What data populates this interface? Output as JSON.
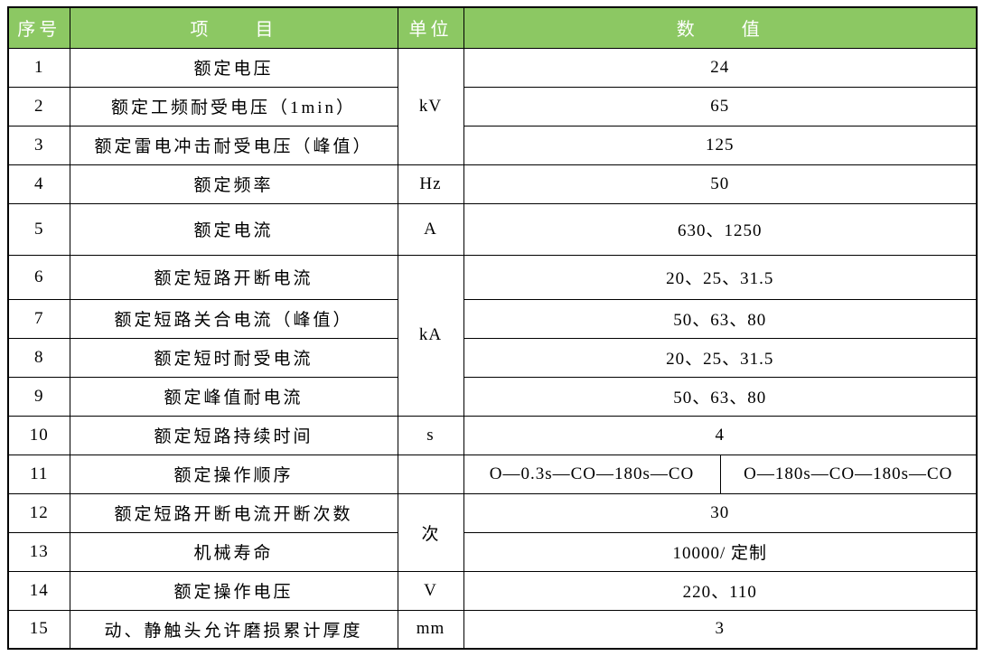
{
  "table": {
    "colors": {
      "header_bg": "#8cc863",
      "header_text": "#ffffff",
      "border": "#000000",
      "body_bg": "#ffffff",
      "body_text": "#000000"
    },
    "header": {
      "col_num": "序号",
      "col_item": "项　　目",
      "col_unit": "单位",
      "col_value": "数　　值"
    },
    "rows": [
      {
        "num": "1",
        "item": "额定电压",
        "unit": {
          "text": "kV",
          "rowspan": 3
        },
        "values": [
          {
            "text": "24"
          }
        ]
      },
      {
        "num": "2",
        "item": "额定工频耐受电压（1min）",
        "values": [
          {
            "text": "65"
          }
        ]
      },
      {
        "num": "3",
        "item": "额定雷电冲击耐受电压（峰值）",
        "values": [
          {
            "text": "125"
          }
        ]
      },
      {
        "num": "4",
        "item": "额定频率",
        "unit": {
          "text": "Hz",
          "rowspan": 1
        },
        "values": [
          {
            "text": "50"
          }
        ]
      },
      {
        "num": "5",
        "item": "额定电流",
        "unit": {
          "text": "A",
          "rowspan": 1
        },
        "values": [
          {
            "text": "630、1250"
          }
        ]
      },
      {
        "num": "6",
        "item": "额定短路开断电流",
        "unit": {
          "text": "kA",
          "rowspan": 4
        },
        "values": [
          {
            "text": "20、25、31.5"
          }
        ]
      },
      {
        "num": "7",
        "item": "额定短路关合电流（峰值）",
        "values": [
          {
            "text": "50、63、80"
          }
        ]
      },
      {
        "num": "8",
        "item": "额定短时耐受电流",
        "values": [
          {
            "text": "20、25、31.5"
          }
        ]
      },
      {
        "num": "9",
        "item": "额定峰值耐电流",
        "values": [
          {
            "text": "50、63、80"
          }
        ]
      },
      {
        "num": "10",
        "item": "额定短路持续时间",
        "unit": {
          "text": "s",
          "rowspan": 1
        },
        "values": [
          {
            "text": "4"
          }
        ]
      },
      {
        "num": "11",
        "item": "额定操作顺序",
        "unit": {
          "text": "",
          "rowspan": 1
        },
        "values": [
          {
            "text": "O—0.3s—CO—180s—CO"
          },
          {
            "text": "O—180s—CO—180s—CO"
          }
        ]
      },
      {
        "num": "12",
        "item": "额定短路开断电流开断次数",
        "unit": {
          "text": "次",
          "rowspan": 2
        },
        "values": [
          {
            "text": "30"
          }
        ]
      },
      {
        "num": "13",
        "item": "机械寿命",
        "values": [
          {
            "text": "10000/ 定制"
          }
        ]
      },
      {
        "num": "14",
        "item": "额定操作电压",
        "unit": {
          "text": "V",
          "rowspan": 1
        },
        "values": [
          {
            "text": "220、110"
          }
        ]
      },
      {
        "num": "15",
        "item": "动、静触头允许磨损累计厚度",
        "unit": {
          "text": "mm",
          "rowspan": 1
        },
        "values": [
          {
            "text": "3"
          }
        ]
      }
    ]
  }
}
